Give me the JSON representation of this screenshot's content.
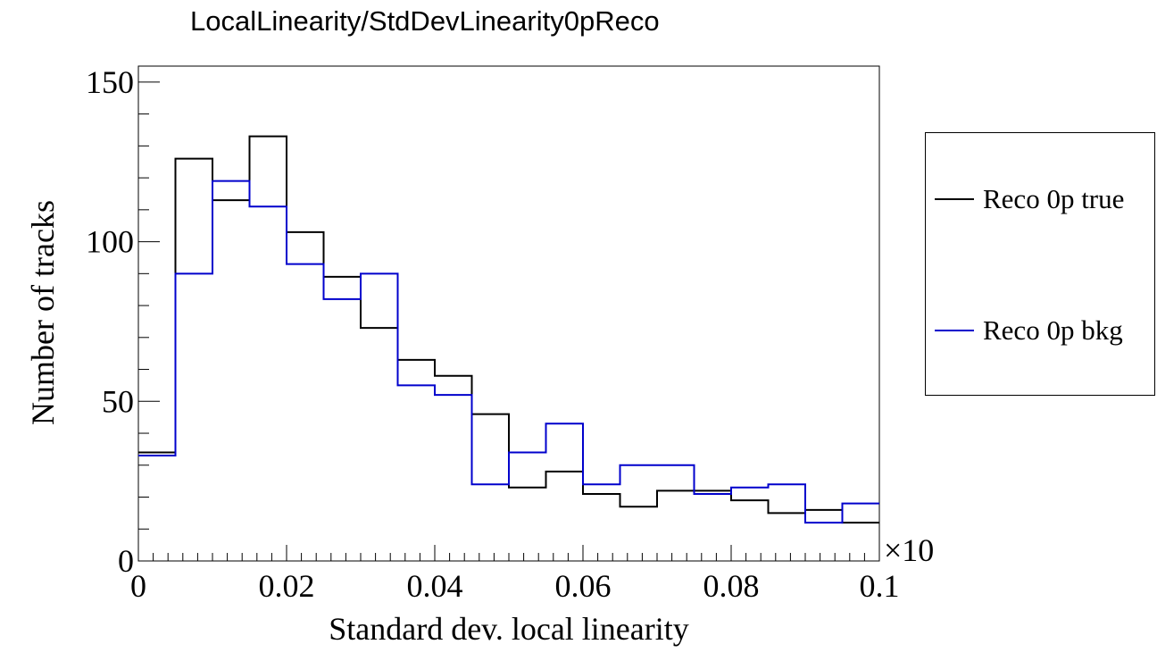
{
  "chart_data": {
    "type": "histogram",
    "title": "LocalLinearity/StdDevLinearity0pReco",
    "xlabel": "Standard dev. local linearity",
    "ylabel": "Number of tracks",
    "x_exponent_label": "×10",
    "xlim": [
      0,
      0.1
    ],
    "ylim": [
      0,
      155
    ],
    "x_ticks": [
      "0",
      "0.02",
      "0.04",
      "0.06",
      "0.08",
      "0.1"
    ],
    "x_tick_values": [
      0,
      0.02,
      0.04,
      0.06,
      0.08,
      0.1
    ],
    "y_ticks": [
      "0",
      "50",
      "100",
      "150"
    ],
    "y_tick_values": [
      0,
      50,
      100,
      150
    ],
    "bin_edges": [
      0,
      0.005,
      0.01,
      0.015,
      0.02,
      0.025,
      0.03,
      0.035,
      0.04,
      0.045,
      0.05,
      0.055,
      0.06,
      0.065,
      0.07,
      0.075,
      0.08,
      0.085,
      0.09,
      0.095,
      0.1
    ],
    "series": [
      {
        "name": "Reco 0p true",
        "color": "#000000",
        "values": [
          34,
          126,
          113,
          133,
          103,
          89,
          73,
          63,
          58,
          46,
          23,
          28,
          21,
          17,
          22,
          22,
          19,
          15,
          16,
          12
        ]
      },
      {
        "name": "Reco 0p bkg",
        "color": "#0000cc",
        "values": [
          33,
          90,
          119,
          111,
          93,
          82,
          90,
          55,
          52,
          24,
          34,
          43,
          24,
          30,
          30,
          21,
          23,
          24,
          12,
          18
        ]
      }
    ],
    "legend_position": "right"
  }
}
